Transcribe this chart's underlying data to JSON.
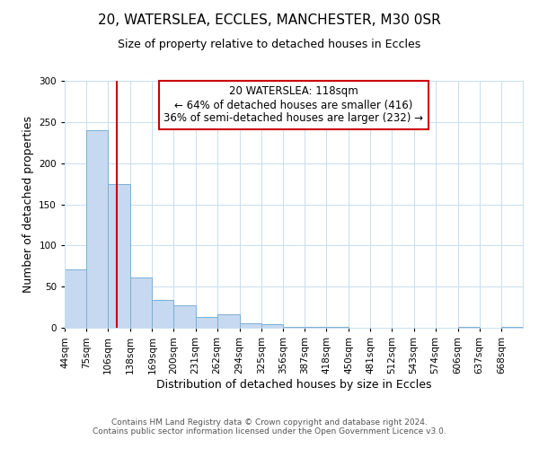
{
  "title": "20, WATERSLEA, ECCLES, MANCHESTER, M30 0SR",
  "subtitle": "Size of property relative to detached houses in Eccles",
  "xlabel": "Distribution of detached houses by size in Eccles",
  "ylabel": "Number of detached properties",
  "bin_labels": [
    "44sqm",
    "75sqm",
    "106sqm",
    "138sqm",
    "169sqm",
    "200sqm",
    "231sqm",
    "262sqm",
    "294sqm",
    "325sqm",
    "356sqm",
    "387sqm",
    "418sqm",
    "450sqm",
    "481sqm",
    "512sqm",
    "543sqm",
    "574sqm",
    "606sqm",
    "637sqm",
    "668sqm"
  ],
  "bar_heights": [
    71,
    240,
    175,
    61,
    34,
    27,
    13,
    16,
    6,
    4,
    1,
    1,
    1,
    0,
    0,
    0,
    0,
    0,
    1,
    0,
    1
  ],
  "bar_color": "#c6d9f0",
  "bar_edge_color": "#7bafd4",
  "vline_x": 118,
  "vline_color": "#cc0000",
  "ylim": [
    0,
    300
  ],
  "yticks": [
    0,
    50,
    100,
    150,
    200,
    250,
    300
  ],
  "annotation_title": "20 WATERSLEA: 118sqm",
  "annotation_line1": "← 64% of detached houses are smaller (416)",
  "annotation_line2": "36% of semi-detached houses are larger (232) →",
  "annotation_box_color": "#cc0000",
  "footer_line1": "Contains HM Land Registry data © Crown copyright and database right 2024.",
  "footer_line2": "Contains public sector information licensed under the Open Government Licence v3.0.",
  "bin_edges": [
    44,
    75,
    106,
    138,
    169,
    200,
    231,
    262,
    294,
    325,
    356,
    387,
    418,
    450,
    481,
    512,
    543,
    574,
    606,
    637,
    668,
    699
  ],
  "title_fontsize": 11,
  "subtitle_fontsize": 9,
  "ylabel_fontsize": 9,
  "xlabel_fontsize": 9,
  "tick_fontsize": 7.5,
  "annotation_fontsize": 8.5,
  "footer_fontsize": 6.5
}
